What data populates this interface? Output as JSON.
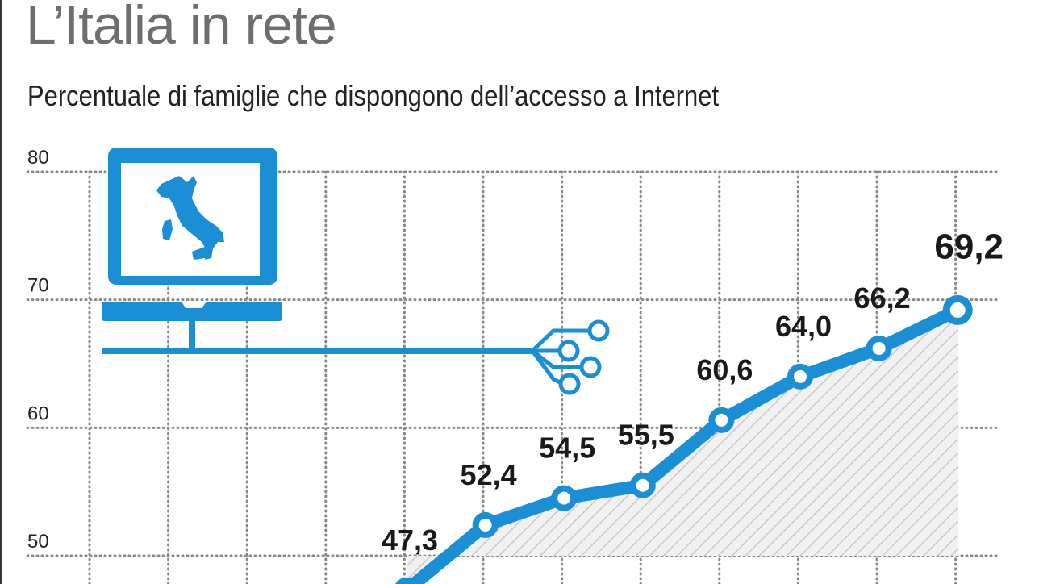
{
  "title": "L’Italia in rete",
  "subtitle": "Percentuale di famiglie che dispongono dell’accesso a Internet",
  "colors": {
    "line": "#1a8fd6",
    "grid": "#888888",
    "title": "#6e6e6e",
    "hatch": "#c8c8c8"
  },
  "icon": "computer-with-italy-map-and-network-cable",
  "chart_data": {
    "type": "area",
    "title": "L’Italia in rete",
    "subtitle": "Percentuale di famiglie che dispongono dell’accesso a Internet",
    "xlabel": "",
    "ylabel": "",
    "ylim": [
      50,
      80
    ],
    "yticks": [
      50,
      60,
      70,
      80
    ],
    "grid": true,
    "series": [
      {
        "values": [
          47.3,
          52.4,
          54.5,
          55.5,
          60.6,
          64.0,
          66.2,
          69.2
        ],
        "labels": [
          "47,3",
          "52,4",
          "54,5",
          "55,5",
          "60,6",
          "64,0",
          "66,2",
          "69,2"
        ]
      }
    ]
  }
}
